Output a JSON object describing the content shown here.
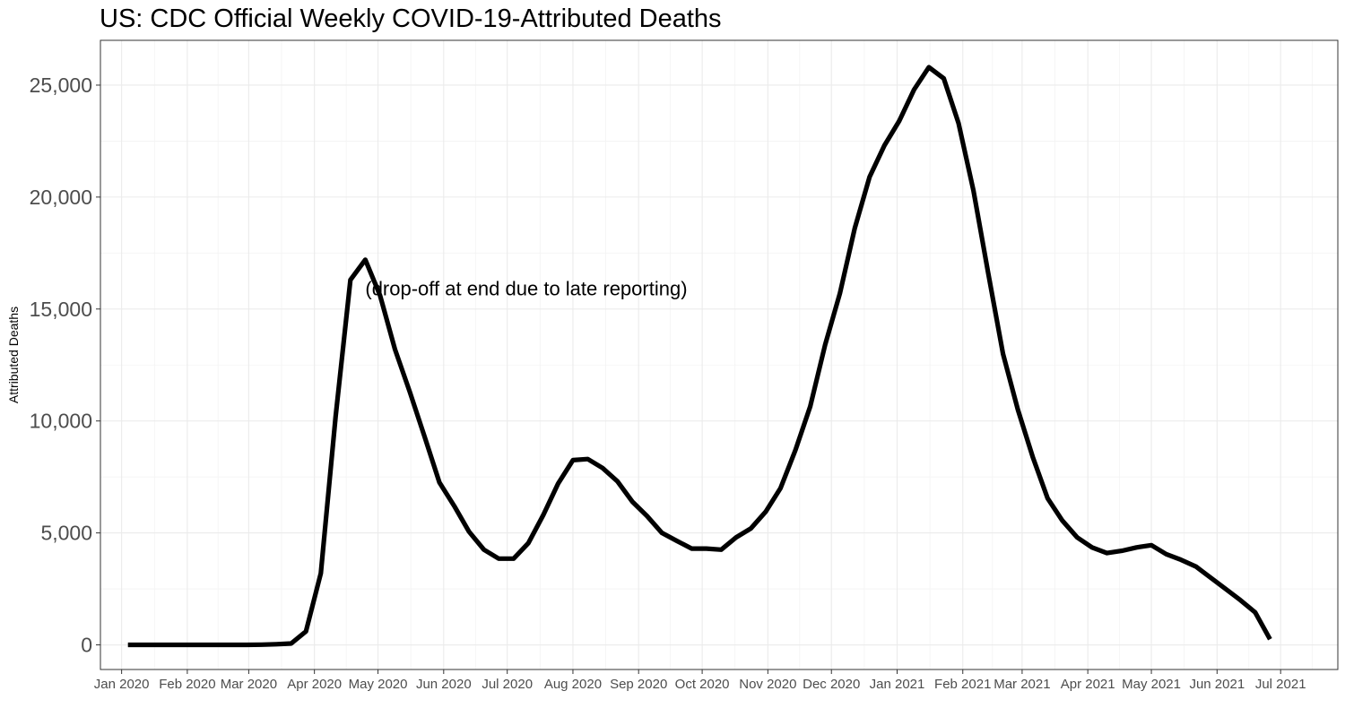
{
  "chart_data": {
    "type": "line",
    "title": "US: CDC Official Weekly COVID-19-Attributed Deaths",
    "xlabel": "",
    "ylabel": "Attributed Deaths",
    "ylim": [
      -1100,
      27000
    ],
    "yticks": [
      {
        "value": 0,
        "label": "0"
      },
      {
        "value": 5000,
        "label": "5,000"
      },
      {
        "value": 10000,
        "label": "10,000"
      },
      {
        "value": 15000,
        "label": "15,000"
      },
      {
        "value": 20000,
        "label": "20,000"
      },
      {
        "value": 25000,
        "label": "25,000"
      }
    ],
    "xlim": [
      "2019-12-22",
      "2021-07-28"
    ],
    "xticks": [
      {
        "date": "2020-01-01",
        "label": "Jan 2020"
      },
      {
        "date": "2020-02-01",
        "label": "Feb 2020"
      },
      {
        "date": "2020-03-01",
        "label": "Mar 2020"
      },
      {
        "date": "2020-04-01",
        "label": "Apr 2020"
      },
      {
        "date": "2020-05-01",
        "label": "May 2020"
      },
      {
        "date": "2020-06-01",
        "label": "Jun 2020"
      },
      {
        "date": "2020-07-01",
        "label": "Jul 2020"
      },
      {
        "date": "2020-08-01",
        "label": "Aug 2020"
      },
      {
        "date": "2020-09-01",
        "label": "Sep 2020"
      },
      {
        "date": "2020-10-01",
        "label": "Oct 2020"
      },
      {
        "date": "2020-11-01",
        "label": "Nov 2020"
      },
      {
        "date": "2020-12-01",
        "label": "Dec 2020"
      },
      {
        "date": "2021-01-01",
        "label": "Jan 2021"
      },
      {
        "date": "2021-02-01",
        "label": "Feb 2021"
      },
      {
        "date": "2021-03-01",
        "label": "Mar 2021"
      },
      {
        "date": "2021-04-01",
        "label": "Apr 2021"
      },
      {
        "date": "2021-05-01",
        "label": "May 2021"
      },
      {
        "date": "2021-06-01",
        "label": "Jun 2021"
      },
      {
        "date": "2021-07-01",
        "label": "Jul 2021"
      }
    ],
    "annotation": {
      "text": "(drop-off at end due to late reporting)",
      "x": "2020-07-10",
      "y": 15900
    },
    "grid": true,
    "series_color": "#000000",
    "series": [
      {
        "x": [
          "2020-01-04",
          "2020-01-11",
          "2020-01-18",
          "2020-01-25",
          "2020-02-01",
          "2020-02-08",
          "2020-02-15",
          "2020-02-22",
          "2020-02-29",
          "2020-03-07",
          "2020-03-14",
          "2020-03-21",
          "2020-03-28",
          "2020-04-04",
          "2020-04-11",
          "2020-04-18",
          "2020-04-25",
          "2020-05-02",
          "2020-05-09",
          "2020-05-16",
          "2020-05-23",
          "2020-05-30",
          "2020-06-06",
          "2020-06-13",
          "2020-06-20",
          "2020-06-27",
          "2020-07-04",
          "2020-07-11",
          "2020-07-18",
          "2020-07-25",
          "2020-08-01",
          "2020-08-08",
          "2020-08-15",
          "2020-08-22",
          "2020-08-29",
          "2020-09-05",
          "2020-09-12",
          "2020-09-19",
          "2020-09-26",
          "2020-10-03",
          "2020-10-10",
          "2020-10-17",
          "2020-10-24",
          "2020-10-31",
          "2020-11-07",
          "2020-11-14",
          "2020-11-21",
          "2020-11-28",
          "2020-12-05",
          "2020-12-12",
          "2020-12-19",
          "2020-12-26",
          "2021-01-02",
          "2021-01-09",
          "2021-01-16",
          "2021-01-23",
          "2021-01-30",
          "2021-02-06",
          "2021-02-13",
          "2021-02-20",
          "2021-02-27",
          "2021-03-06",
          "2021-03-13",
          "2021-03-20",
          "2021-03-27",
          "2021-04-03",
          "2021-04-10",
          "2021-04-17",
          "2021-04-24",
          "2021-05-01",
          "2021-05-08",
          "2021-05-15",
          "2021-05-22",
          "2021-05-29",
          "2021-06-05",
          "2021-06-12",
          "2021-06-19",
          "2021-06-26"
        ],
        "values": [
          0,
          0,
          0,
          0,
          0,
          0,
          0,
          0,
          0,
          10,
          30,
          60,
          600,
          3200,
          10200,
          16300,
          17200,
          15600,
          13200,
          11300,
          9300,
          7250,
          6200,
          5050,
          4250,
          3850,
          3850,
          4550,
          5800,
          7200,
          8250,
          8300,
          7900,
          7300,
          6400,
          5750,
          5000,
          4650,
          4300,
          4300,
          4250,
          4800,
          5200,
          5950,
          7000,
          8700,
          10650,
          13400,
          15700,
          18600,
          20900,
          22300,
          23400,
          24800,
          25800,
          25300,
          23300,
          20300,
          16600,
          13000,
          10500,
          8400,
          6550,
          5550,
          4800,
          4350,
          4100,
          4200,
          4350,
          4450,
          4050,
          3800,
          3500,
          3000,
          2500,
          2000,
          1450,
          250
        ]
      }
    ]
  }
}
